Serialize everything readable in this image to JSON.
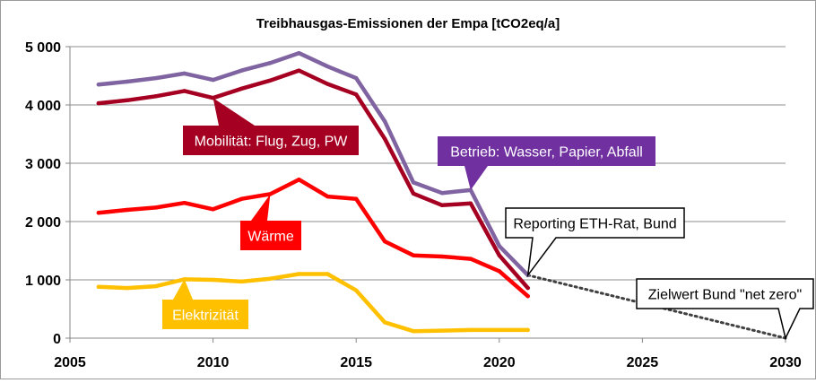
{
  "chart_data": {
    "type": "line",
    "title": "Treibhausgas-Emissionen  der Empa  [tCO2eq/a]",
    "xlabel": "",
    "ylabel": "",
    "xlim": [
      2005,
      2030
    ],
    "ylim": [
      0,
      5000
    ],
    "x_ticks": [
      2005,
      2010,
      2015,
      2020,
      2025,
      2030
    ],
    "y_ticks": [
      0,
      1000,
      2000,
      3000,
      4000,
      5000
    ],
    "x_tick_labels": [
      "2005",
      "2010",
      "2015",
      "2020",
      "2025",
      "2030"
    ],
    "y_tick_labels": [
      "0",
      "1 000",
      "2 000",
      "3 000",
      "4 000",
      "5 000"
    ],
    "grid": "horizontal",
    "legend": "none",
    "series": [
      {
        "name": "Betrieb: Wasser, Papier, Abfall",
        "color": "#8064A2",
        "x": [
          2006,
          2007,
          2008,
          2009,
          2010,
          2011,
          2012,
          2013,
          2014,
          2015,
          2016,
          2017,
          2018,
          2019,
          2020,
          2021
        ],
        "y": [
          4350,
          4400,
          4460,
          4540,
          4430,
          4590,
          4720,
          4890,
          4660,
          4460,
          3720,
          2670,
          2490,
          2540,
          1580,
          1080
        ]
      },
      {
        "name": "Mobilität: Flug, Zug, PW",
        "color": "#A50021",
        "x": [
          2006,
          2007,
          2008,
          2009,
          2010,
          2011,
          2012,
          2013,
          2014,
          2015,
          2016,
          2017,
          2018,
          2019,
          2020,
          2021
        ],
        "y": [
          4030,
          4080,
          4150,
          4240,
          4120,
          4280,
          4420,
          4590,
          4360,
          4180,
          3420,
          2480,
          2280,
          2310,
          1420,
          860
        ]
      },
      {
        "name": "Wärme",
        "color": "#FF0000",
        "x": [
          2006,
          2007,
          2008,
          2009,
          2010,
          2011,
          2012,
          2013,
          2014,
          2015,
          2016,
          2017,
          2018,
          2019,
          2020,
          2021
        ],
        "y": [
          2150,
          2200,
          2240,
          2320,
          2210,
          2390,
          2470,
          2720,
          2430,
          2390,
          1660,
          1420,
          1400,
          1360,
          1150,
          720
        ]
      },
      {
        "name": "Elektrizität",
        "color": "#FFC000",
        "x": [
          2006,
          2007,
          2008,
          2009,
          2010,
          2011,
          2012,
          2013,
          2014,
          2015,
          2016,
          2017,
          2018,
          2019,
          2020,
          2021
        ],
        "y": [
          880,
          860,
          890,
          1010,
          1000,
          970,
          1020,
          1100,
          1100,
          820,
          270,
          120,
          130,
          140,
          140,
          140
        ]
      }
    ],
    "target_line": {
      "style": "dotted",
      "color": "#404040",
      "x": [
        2021,
        2030
      ],
      "y": [
        1080,
        0
      ]
    },
    "annotations": [
      {
        "id": "mobilitaet",
        "text": "Mobilität: Flug, Zug, PW",
        "fill": "#A50021",
        "text_color": "#ffffff",
        "border": "none",
        "points_to": [
          2010,
          4120
        ]
      },
      {
        "id": "betrieb",
        "text": "Betrieb: Wasser, Papier, Abfall",
        "fill": "#7030A0",
        "text_color": "#ffffff",
        "border": "none",
        "points_to": [
          2019,
          2540
        ]
      },
      {
        "id": "waerme",
        "text": "Wärme",
        "fill": "#FF0000",
        "text_color": "#ffffff",
        "border": "none",
        "points_to": [
          2012,
          2470
        ]
      },
      {
        "id": "elektrizitaet",
        "text": "Elektrizität",
        "fill": "#FFC000",
        "text_color": "#ffffff",
        "border": "none",
        "points_to": [
          2009,
          1010
        ]
      },
      {
        "id": "reporting",
        "text": "Reporting ETH-Rat, Bund",
        "fill": "#ffffff",
        "text_color": "#000000",
        "border": "#000000",
        "points_to": [
          2021,
          1080
        ]
      },
      {
        "id": "zielwert",
        "text": "Zielwert Bund \"net zero\"",
        "fill": "#ffffff",
        "text_color": "#000000",
        "border": "#000000",
        "points_to": [
          2030,
          0
        ]
      }
    ]
  }
}
